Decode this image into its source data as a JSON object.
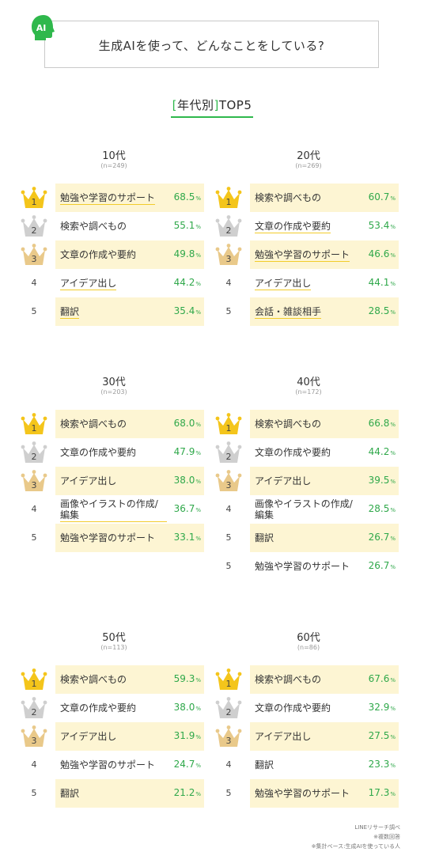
{
  "header": {
    "badge": "AI",
    "title": "生成AIを使って、どんなことをしている?"
  },
  "subtitle": {
    "bracket_open": "[",
    "text": "年代別",
    "bracket_close": "]",
    "suffix": "TOP5"
  },
  "colors": {
    "accent_green": "#2fb84c",
    "value_green": "#2fa84a",
    "highlight": "#fdf5d3",
    "gold": "#f4c51b",
    "silver": "#cfcfcf",
    "bronze": "#e9c98a",
    "underline": "#f2cc2b"
  },
  "unit": "%",
  "chart_data": [
    {
      "type": "table",
      "title": "10代",
      "n": "(n=249)",
      "rows": [
        {
          "rank": "1",
          "label": "勉強や学習のサポート",
          "value": "68.5",
          "highlight": true,
          "underline": true
        },
        {
          "rank": "2",
          "label": "検索や調べもの",
          "value": "55.1",
          "highlight": false,
          "underline": false
        },
        {
          "rank": "3",
          "label": "文章の作成や要約",
          "value": "49.8",
          "highlight": true,
          "underline": false
        },
        {
          "rank": "4",
          "label": "アイデア出し",
          "value": "44.2",
          "highlight": false,
          "underline": true
        },
        {
          "rank": "5",
          "label": "翻訳",
          "value": "35.4",
          "highlight": true,
          "underline": true
        }
      ]
    },
    {
      "type": "table",
      "title": "20代",
      "n": "(n=269)",
      "rows": [
        {
          "rank": "1",
          "label": "検索や調べもの",
          "value": "60.7",
          "highlight": true,
          "underline": false
        },
        {
          "rank": "2",
          "label": "文章の作成や要約",
          "value": "53.4",
          "highlight": false,
          "underline": true
        },
        {
          "rank": "3",
          "label": "勉強や学習のサポート",
          "value": "46.6",
          "highlight": true,
          "underline": true
        },
        {
          "rank": "4",
          "label": "アイデア出し",
          "value": "44.1",
          "highlight": false,
          "underline": true
        },
        {
          "rank": "5",
          "label": "会話・雑談相手",
          "value": "28.5",
          "highlight": true,
          "underline": true
        }
      ]
    },
    {
      "type": "table",
      "title": "30代",
      "n": "(n=203)",
      "rows": [
        {
          "rank": "1",
          "label": "検索や調べもの",
          "value": "68.0",
          "highlight": true,
          "underline": false
        },
        {
          "rank": "2",
          "label": "文章の作成や要約",
          "value": "47.9",
          "highlight": false,
          "underline": false
        },
        {
          "rank": "3",
          "label": "アイデア出し",
          "value": "38.0",
          "highlight": true,
          "underline": false
        },
        {
          "rank": "4",
          "label": "画像やイラストの作成/編集",
          "value": "36.7",
          "highlight": false,
          "underline": true,
          "two_line": true
        },
        {
          "rank": "5",
          "label": "勉強や学習のサポート",
          "value": "33.1",
          "highlight": true,
          "underline": false
        }
      ]
    },
    {
      "type": "table",
      "title": "40代",
      "n": "(n=172)",
      "rows": [
        {
          "rank": "1",
          "label": "検索や調べもの",
          "value": "66.8",
          "highlight": true,
          "underline": false
        },
        {
          "rank": "2",
          "label": "文章の作成や要約",
          "value": "44.2",
          "highlight": false,
          "underline": false
        },
        {
          "rank": "3",
          "label": "アイデア出し",
          "value": "39.5",
          "highlight": true,
          "underline": false
        },
        {
          "rank": "4",
          "label": "画像やイラストの作成/編集",
          "value": "28.5",
          "highlight": false,
          "underline": false,
          "two_line": true
        },
        {
          "rank": "5",
          "label": "翻訳",
          "value": "26.7",
          "highlight": true,
          "underline": false
        },
        {
          "rank": "5",
          "label": "勉強や学習のサポート",
          "value": "26.7",
          "highlight": false,
          "underline": false
        }
      ]
    },
    {
      "type": "table",
      "title": "50代",
      "n": "(n=113)",
      "rows": [
        {
          "rank": "1",
          "label": "検索や調べもの",
          "value": "59.3",
          "highlight": true,
          "underline": false
        },
        {
          "rank": "2",
          "label": "文章の作成や要約",
          "value": "38.0",
          "highlight": false,
          "underline": false
        },
        {
          "rank": "3",
          "label": "アイデア出し",
          "value": "31.9",
          "highlight": true,
          "underline": false
        },
        {
          "rank": "4",
          "label": "勉強や学習のサポート",
          "value": "24.7",
          "highlight": false,
          "underline": false
        },
        {
          "rank": "5",
          "label": "翻訳",
          "value": "21.2",
          "highlight": true,
          "underline": false
        }
      ]
    },
    {
      "type": "table",
      "title": "60代",
      "n": "(n=86)",
      "rows": [
        {
          "rank": "1",
          "label": "検索や調べもの",
          "value": "67.6",
          "highlight": true,
          "underline": false
        },
        {
          "rank": "2",
          "label": "文章の作成や要約",
          "value": "32.9",
          "highlight": false,
          "underline": false
        },
        {
          "rank": "3",
          "label": "アイデア出し",
          "value": "27.5",
          "highlight": true,
          "underline": false
        },
        {
          "rank": "4",
          "label": "翻訳",
          "value": "23.3",
          "highlight": false,
          "underline": false
        },
        {
          "rank": "5",
          "label": "勉強や学習のサポート",
          "value": "17.3",
          "highlight": true,
          "underline": false
        }
      ]
    }
  ],
  "footer": {
    "source": "LINEリサーチ調べ",
    "note1": "※複数回答",
    "note2": "※集計ベース:生成AIを使っている人"
  }
}
